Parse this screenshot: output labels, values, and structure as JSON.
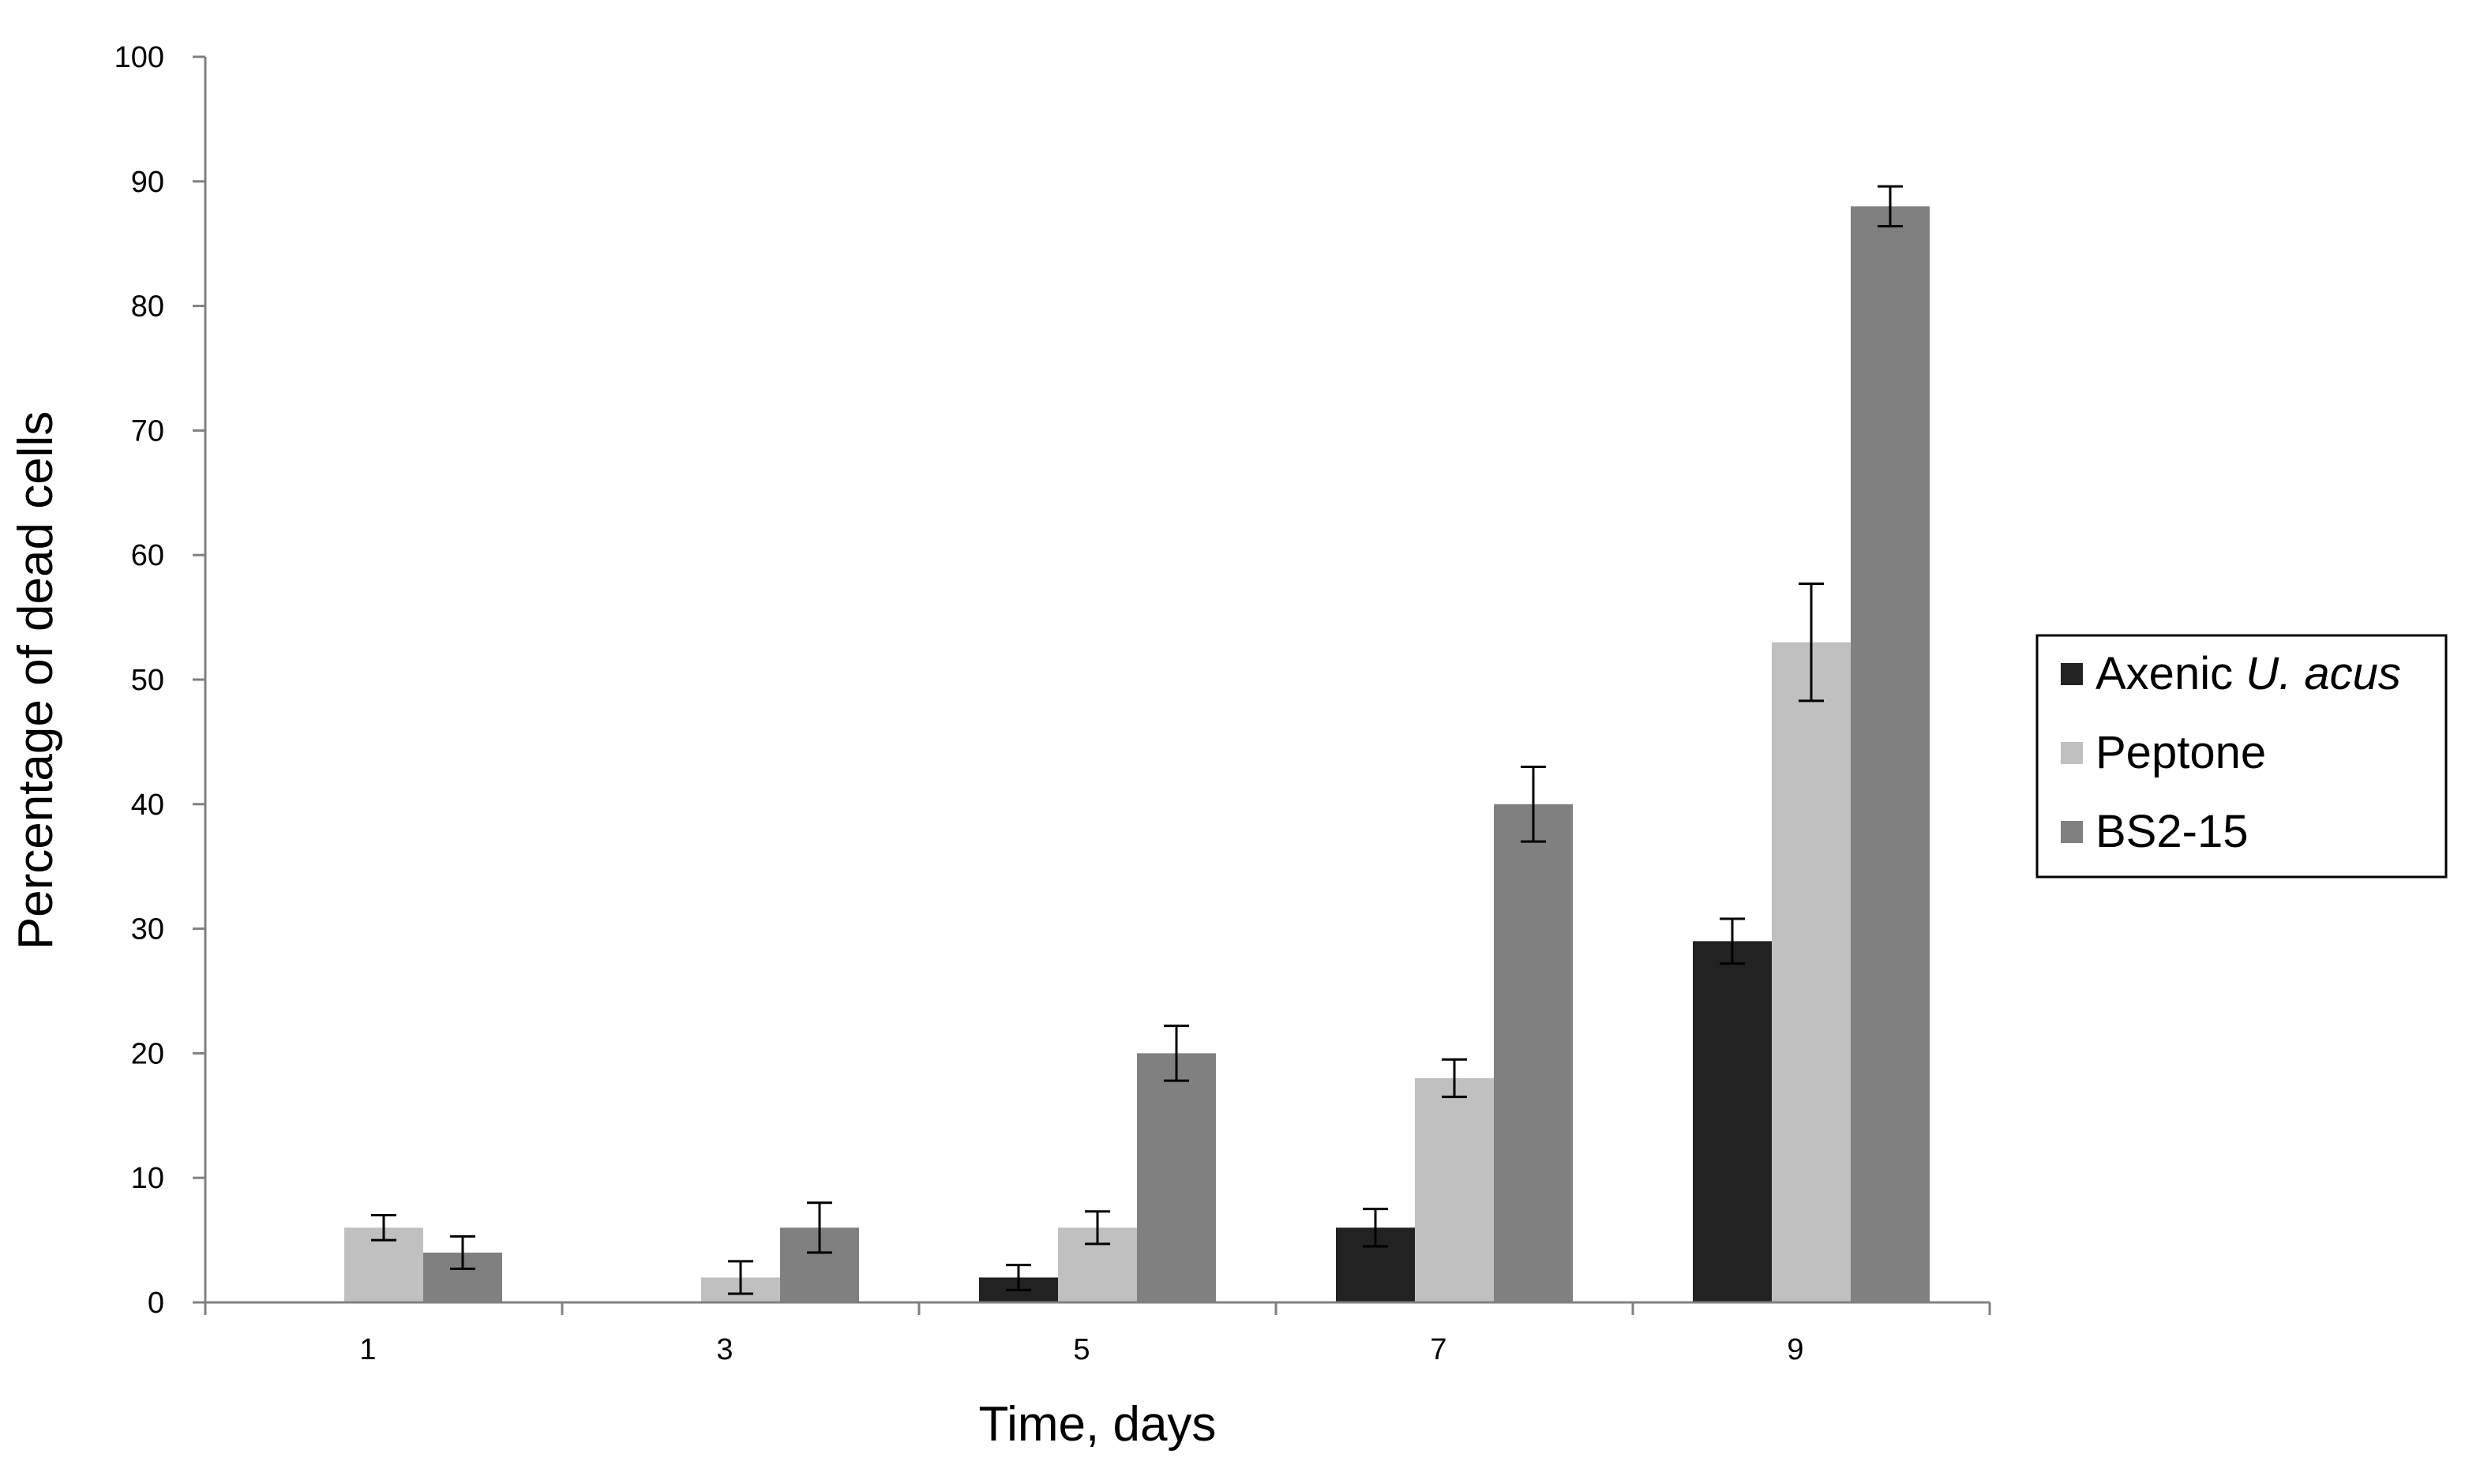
{
  "chart_data": {
    "type": "bar",
    "title": "",
    "xlabel": "Time, days",
    "ylabel": "Percentage of dead cells",
    "categories": [
      "1",
      "3",
      "5",
      "7",
      "9"
    ],
    "ylim": [
      0,
      100
    ],
    "yticks": [
      0,
      10,
      20,
      30,
      40,
      50,
      60,
      70,
      80,
      90,
      100
    ],
    "grid": false,
    "legend_position": "right",
    "series": [
      {
        "name_main": "Axenic ",
        "name_italic": "U. acus",
        "color": "#222222",
        "values": [
          0,
          0,
          2,
          6,
          29
        ],
        "errors": [
          0,
          0,
          1,
          1.5,
          1.8
        ]
      },
      {
        "name": "Peptone",
        "color": "#c0c0c0",
        "values": [
          6,
          2,
          6,
          18,
          53
        ],
        "errors": [
          1,
          1.3,
          1.3,
          1.5,
          4.7
        ]
      },
      {
        "name": "BS2-15",
        "color": "#808080",
        "values": [
          4,
          6,
          20,
          40,
          88
        ],
        "errors": [
          1.3,
          2,
          2.2,
          3,
          1.6
        ]
      }
    ]
  }
}
